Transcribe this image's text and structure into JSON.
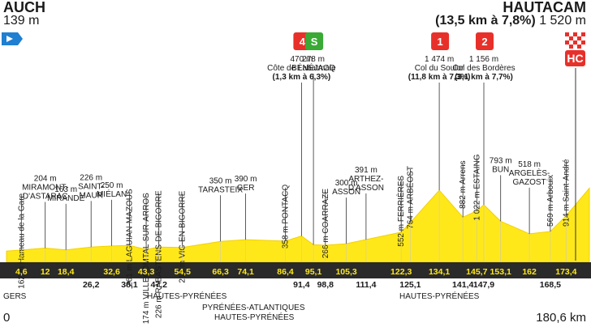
{
  "start": {
    "name": "AUCH",
    "altitude": "139 m"
  },
  "finish": {
    "name": "HAUTACAM",
    "climb_note": "(13,5 km à 7,8%)",
    "altitude": "1 520 m",
    "category": "HC"
  },
  "waypoints": [
    {
      "label": "162 m Hameau de la Gare",
      "km": "4,6",
      "row": "top",
      "style": "rot"
    },
    {
      "label": "204 m|MIRAMONT-|D'ASTARAC",
      "km": "12",
      "row": "top",
      "style": "h"
    },
    {
      "label": "163 m|MIRANDE",
      "km": "18,4",
      "row": "top",
      "style": "h"
    },
    {
      "label": "226 m|SAINT-|MAUR",
      "km": "26,2",
      "row": "bottom",
      "style": "h"
    },
    {
      "label": "250 m|MIÉLAN",
      "km": "32,6",
      "row": "top",
      "style": "h"
    },
    {
      "label": "261 m LAGUIAN-MAZOUS",
      "km": "38,1",
      "row": "bottom",
      "style": "rot"
    },
    {
      "label": "174 m VILLECOMTAL-SUR-ARROS",
      "km": "43,3",
      "row": "top",
      "style": "rot"
    },
    {
      "label": "226 m RABASTENS-DE-BIGORRE",
      "km": "47,2",
      "row": "bottom",
      "style": "rot"
    },
    {
      "label": "218 m VIC-EN-BIGORRE",
      "km": "54,5",
      "row": "top",
      "style": "rot"
    },
    {
      "label": "350 m|TARASTEIX",
      "km": "66,3",
      "row": "top",
      "style": "h"
    },
    {
      "label": "390 m|GER",
      "km": "74,1",
      "row": "top",
      "style": "h"
    },
    {
      "label": "358 m PONTACQ",
      "km": "86,4",
      "row": "top",
      "style": "rot"
    },
    {
      "label": "470 m|Côte de Labatmale",
      "km": "91,4",
      "row": "bottom",
      "style": "h",
      "note": "(1,3 km à 6,3%)",
      "badge": "4"
    },
    {
      "label": "278 m|BÉNÉJACQ",
      "km": "95,1",
      "row": "top",
      "style": "h",
      "badge": "S"
    },
    {
      "label": "266 m COARRAZE",
      "km": "98,8",
      "row": "bottom",
      "style": "rot"
    },
    {
      "label": "300 m|ASSON",
      "km": "105,3",
      "row": "top",
      "style": "h"
    },
    {
      "label": "391 m|ARTHEZ-|D'ASSON",
      "km": "111,4",
      "row": "bottom",
      "style": "h"
    },
    {
      "label": "552 m FERRIÈRES",
      "km": "122,3",
      "row": "top",
      "style": "rot"
    },
    {
      "label": "764 m ARBÉOST",
      "km": "125,1",
      "row": "bottom",
      "style": "rot"
    },
    {
      "label": "1 474 m|Col du Soulor",
      "km": "134,1",
      "row": "top",
      "style": "h",
      "note": "(11,8 km à 7,3%)",
      "badge": "1"
    },
    {
      "label": "882 m Arrens",
      "km": "141,4",
      "row": "bottom",
      "style": "rot"
    },
    {
      "label": "1 022 m ESTAING",
      "km": "145,7",
      "row": "top",
      "style": "rot"
    },
    {
      "label": "1 156 m|Col des Bordères",
      "km": "147,9",
      "row": "bottom",
      "style": "h",
      "note": "(3,1 km à 7,7%)",
      "badge": "2"
    },
    {
      "label": "793 m|BUN",
      "km": "153,1",
      "row": "top",
      "style": "h"
    },
    {
      "label": "518 m|ARGELÈS-|GAZOST",
      "km": "162",
      "row": "top",
      "style": "h"
    },
    {
      "label": "569 m Arbouix",
      "km": "168,5",
      "row": "bottom",
      "style": "rot"
    },
    {
      "label": "914 m Saint-André",
      "km": "173,4",
      "row": "top",
      "style": "rot"
    }
  ],
  "departments": [
    {
      "name": "GERS"
    },
    {
      "name": "HAUTES-PYRÉNÉES"
    },
    {
      "name": "PYRÉNÉES-ATLANTIQUES"
    },
    {
      "name": "HAUTES-PYRÉNÉES"
    },
    {
      "name": "HAUTES-PYRÉNÉES"
    }
  ],
  "distance_start": "0",
  "distance_end": "180,6 km",
  "colors": {
    "profile_fill": "#ffe81a",
    "profile_edge": "#f3d000",
    "band": "#2a2a2a",
    "band_text": "#ffe81a",
    "kom_badge": "#e8302a",
    "sprint_badge": "#3aa935",
    "start_flag": "#1f7fd1"
  }
}
